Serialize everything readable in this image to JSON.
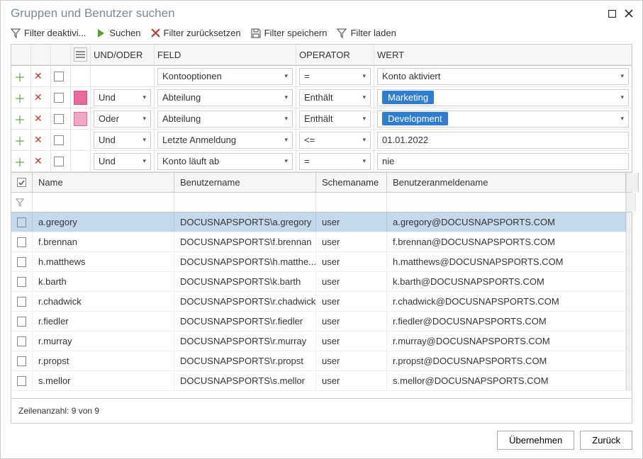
{
  "window": {
    "title": "Gruppen und Benutzer suchen"
  },
  "toolbar": {
    "filter_deactivate": "Filter deaktivi...",
    "search": "Suchen",
    "filter_reset": "Filter zurücksetzen",
    "filter_save": "Filter speichern",
    "filter_load": "Filter laden"
  },
  "filter_headers": {
    "undoder": "UND/ODER",
    "feld": "FELD",
    "operator": "OPERATOR",
    "wert": "WERT"
  },
  "filter_rows": [
    {
      "icon": "",
      "undoder": "",
      "feld": "Kontooptionen",
      "operator": "=",
      "wert": "Konto aktiviert",
      "wert_chip": false,
      "wert_ddl": true
    },
    {
      "icon": "pink",
      "undoder": "Und",
      "feld": "Abteilung",
      "operator": "Enthält",
      "wert": "Marketing",
      "wert_chip": true,
      "wert_ddl": true
    },
    {
      "icon": "pinkl",
      "undoder": "Oder",
      "feld": "Abteilung",
      "operator": "Enthält",
      "wert": "Development",
      "wert_chip": true,
      "wert_ddl": true
    },
    {
      "icon": "",
      "undoder": "Und",
      "feld": "Letzte Anmeldung",
      "operator": "<=",
      "wert": "01.01.2022",
      "wert_chip": false,
      "wert_ddl": false
    },
    {
      "icon": "",
      "undoder": "Und",
      "feld": "Konto läuft ab",
      "operator": "=",
      "wert": "nie",
      "wert_chip": false,
      "wert_ddl": false
    }
  ],
  "result_headers": {
    "name": "Name",
    "benutzername": "Benutzername",
    "schemaname": "Schemaname",
    "anmeldename": "Benutzeranmeldename"
  },
  "result_rows": [
    {
      "name": "a.gregory",
      "user": "DOCUSNAPSPORTS\\a.gregory",
      "schema": "user",
      "login": "a.gregory@DOCUSNAPSPORTS.COM",
      "selected": true
    },
    {
      "name": "f.brennan",
      "user": "DOCUSNAPSPORTS\\f.brennan",
      "schema": "user",
      "login": "f.brennan@DOCUSNAPSPORTS.COM",
      "selected": false
    },
    {
      "name": "h.matthews",
      "user": "DOCUSNAPSPORTS\\h.matthe...",
      "schema": "user",
      "login": "h.matthews@DOCUSNAPSPORTS.COM",
      "selected": false
    },
    {
      "name": "k.barth",
      "user": "DOCUSNAPSPORTS\\k.barth",
      "schema": "user",
      "login": "k.barth@DOCUSNAPSPORTS.COM",
      "selected": false
    },
    {
      "name": "r.chadwick",
      "user": "DOCUSNAPSPORTS\\r.chadwick",
      "schema": "user",
      "login": "r.chadwick@DOCUSNAPSPORTS.COM",
      "selected": false
    },
    {
      "name": "r.fiedler",
      "user": "DOCUSNAPSPORTS\\r.fiedler",
      "schema": "user",
      "login": "r.fiedler@DOCUSNAPSPORTS.COM",
      "selected": false
    },
    {
      "name": "r.murray",
      "user": "DOCUSNAPSPORTS\\r.murray",
      "schema": "user",
      "login": "r.murray@DOCUSNAPSPORTS.COM",
      "selected": false
    },
    {
      "name": "r.propst",
      "user": "DOCUSNAPSPORTS\\r.propst",
      "schema": "user",
      "login": "r.propst@DOCUSNAPSPORTS.COM",
      "selected": false
    },
    {
      "name": "s.mellor",
      "user": "DOCUSNAPSPORTS\\s.mellor",
      "schema": "user",
      "login": "s.mellor@DOCUSNAPSPORTS.COM",
      "selected": false
    }
  ],
  "footer": {
    "rowcount": "Zeilenanzahl: 9 von 9"
  },
  "buttons": {
    "apply": "Übernehmen",
    "back": "Zurück"
  },
  "colors": {
    "accent_blue": "#2d7dd2",
    "green": "#5aa02c",
    "red": "#c0392b",
    "pink": "#e86a9a",
    "selected_row": "#c5d9ed",
    "header_bg": "#f6f6f6",
    "border": "#c9c9c9"
  }
}
